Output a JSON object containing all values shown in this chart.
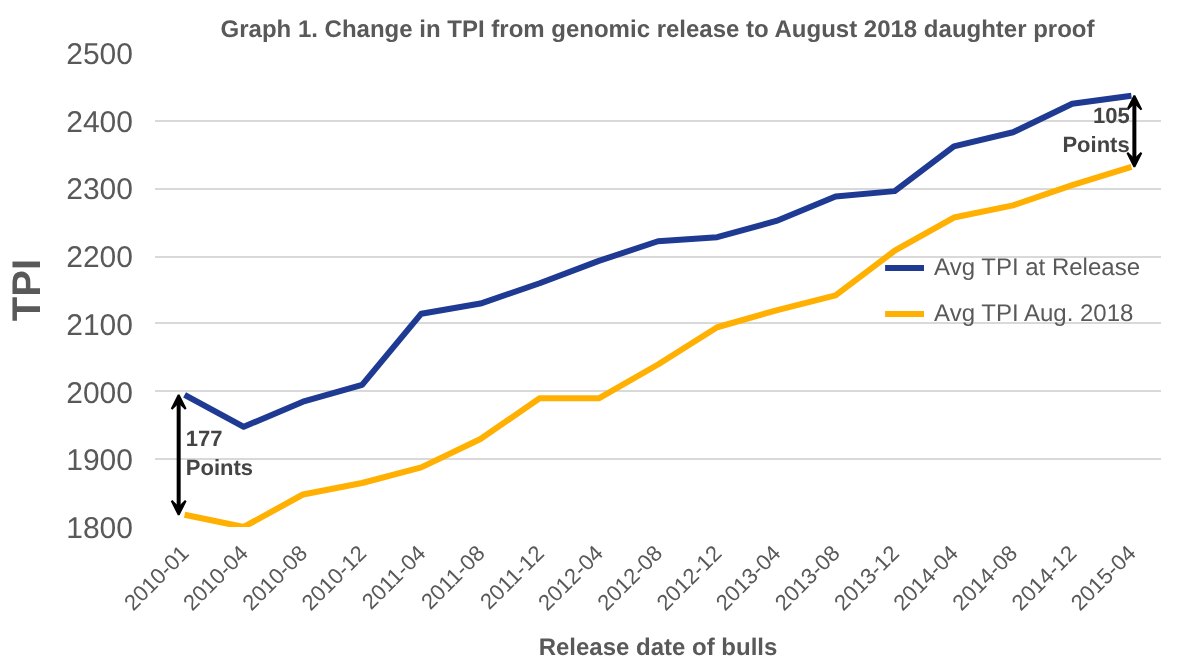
{
  "chart_data": {
    "type": "line",
    "title": "Graph 1. Change in TPI from genomic release to August 2018 daughter proof",
    "xlabel": "Release date of bulls",
    "ylabel": "TPI",
    "categories": [
      "2010-01",
      "2010-04",
      "2010-08",
      "2010-12",
      "2011-04",
      "2011-08",
      "2011-12",
      "2012-04",
      "2012-08",
      "2012-12",
      "2013-04",
      "2013-08",
      "2013-12",
      "2014-04",
      "2014-08",
      "2014-12",
      "2015-04"
    ],
    "series": [
      {
        "name": "Avg TPI at Release",
        "color": "#1f3a93",
        "values": [
          1995,
          1948,
          1985,
          2010,
          2115,
          2130,
          2160,
          2193,
          2222,
          2228,
          2252,
          2288,
          2296,
          2362,
          2383,
          2425,
          2437
        ]
      },
      {
        "name": "Avg TPI Aug. 2018",
        "color": "#ffb000",
        "values": [
          1818,
          1800,
          1848,
          1865,
          1888,
          1930,
          1990,
          1990,
          2040,
          2095,
          2120,
          2142,
          2208,
          2257,
          2275,
          2305,
          2332
        ]
      }
    ],
    "ylim": [
      1800,
      2500
    ],
    "yticks": [
      1800,
      1900,
      2000,
      2100,
      2200,
      2300,
      2400,
      2500
    ],
    "grid": "y",
    "legend": "right",
    "line_style": "solid",
    "marker": "none",
    "annotations": [
      {
        "text": "177\nPoints",
        "x": "2010-01",
        "y": 1995
      },
      {
        "text": "105\nPoints",
        "x": "2015-04",
        "y": 2437
      }
    ]
  }
}
